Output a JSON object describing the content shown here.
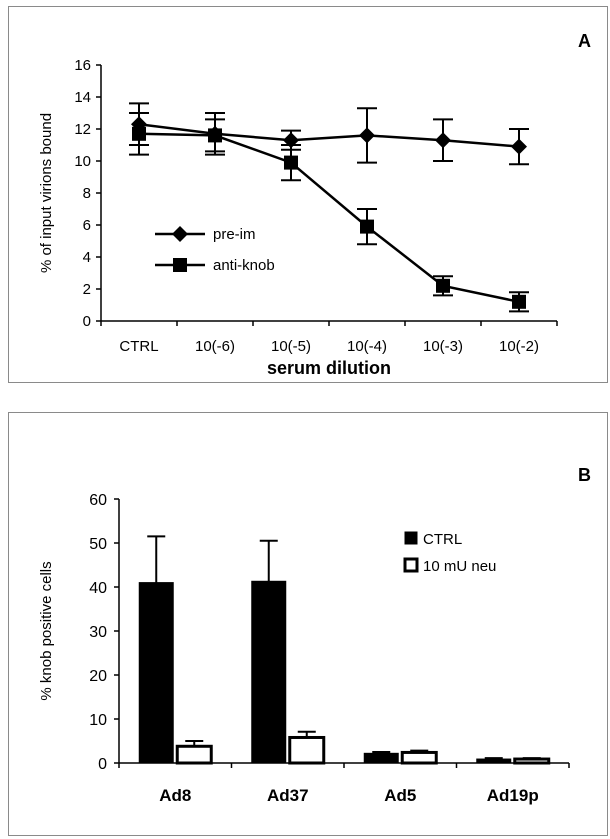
{
  "chart_data": [
    {
      "panel_label": "A",
      "type": "line",
      "categories": [
        "CTRL",
        "10(-6)",
        "10(-5)",
        "10(-4)",
        "10(-3)",
        "10(-2)"
      ],
      "series": [
        {
          "name": "pre-im",
          "marker": "diamond",
          "values": [
            12.3,
            11.7,
            11.3,
            11.6,
            11.3,
            10.9
          ],
          "errors": [
            1.3,
            1.3,
            0.6,
            1.7,
            1.3,
            1.1
          ]
        },
        {
          "name": "anti-knob",
          "marker": "square",
          "values": [
            11.7,
            11.6,
            9.9,
            5.9,
            2.2,
            1.2
          ],
          "errors": [
            1.3,
            1.0,
            1.1,
            1.1,
            0.6,
            0.6
          ]
        }
      ],
      "xlabel": "serum dilution",
      "ylabel": "% of input virions bound",
      "ylim": [
        0,
        16
      ],
      "yticks": [
        0,
        2,
        4,
        6,
        8,
        10,
        12,
        14,
        16
      ],
      "grid": false,
      "legend_position": "center-left"
    },
    {
      "panel_label": "B",
      "type": "bar",
      "categories": [
        "Ad8",
        "Ad37",
        "Ad5",
        "Ad19p"
      ],
      "series": [
        {
          "name": "CTRL",
          "fill": "#000000",
          "values": [
            41,
            41.3,
            2.2,
            0.9
          ],
          "errors": [
            10.5,
            9.2,
            0.3,
            0.2
          ]
        },
        {
          "name": "10 mU neu",
          "fill": "#ffffff",
          "values": [
            3.8,
            5.8,
            2.4,
            0.9
          ],
          "errors": [
            1.2,
            1.3,
            0.4,
            0.2
          ]
        }
      ],
      "xlabel": "",
      "ylabel": "% knob positive cells",
      "ylim": [
        0,
        60
      ],
      "yticks": [
        0,
        10,
        20,
        30,
        40,
        50,
        60
      ],
      "grid": false,
      "legend_position": "right"
    }
  ]
}
